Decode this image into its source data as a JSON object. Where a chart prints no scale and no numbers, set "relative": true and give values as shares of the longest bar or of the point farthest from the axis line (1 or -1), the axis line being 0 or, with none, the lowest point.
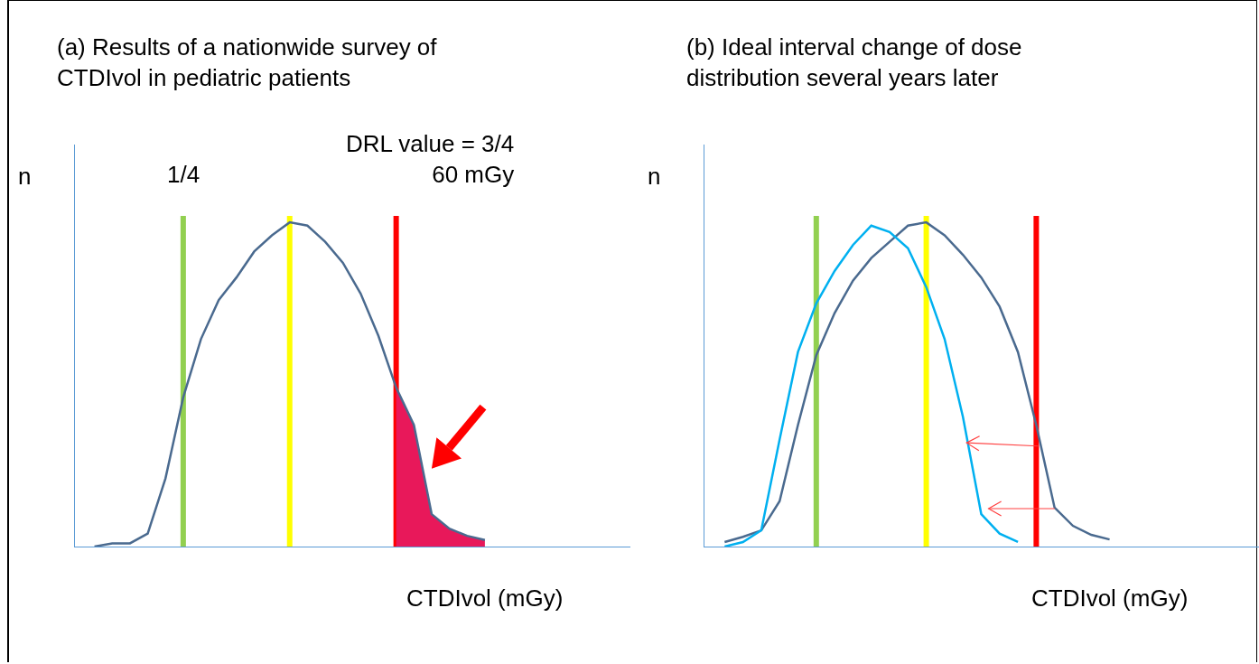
{
  "chart_data": [
    {
      "type": "line",
      "relative": true,
      "title": "(a) Results of a nationwide survey of\nCTDIvol in pediatric patients",
      "xlabel": "CTDIvol (mGy)",
      "ylabel": "n",
      "marker": "none",
      "annotations": [
        "1/4",
        "DRL value = 3/4\n60 mGy"
      ],
      "categories": [
        null,
        null,
        null,
        null,
        null,
        null,
        null,
        null,
        null,
        null,
        null,
        null,
        null,
        null,
        null,
        null,
        null,
        null,
        null,
        null,
        null,
        null,
        null
      ],
      "series": [
        {
          "type": "area",
          "color": "#e8185a",
          "values": [
            null,
            null,
            null,
            null,
            null,
            null,
            null,
            null,
            null,
            null,
            null,
            null,
            null,
            null,
            null,
            null,
            null,
            0.49,
            0.375,
            0.1,
            0.055,
            0.033,
            0.02
          ]
        },
        {
          "color": "#4a6a8f",
          "values": [
            0,
            0.01,
            0.01,
            0.04,
            0.21,
            0.46,
            0.64,
            0.76,
            0.83,
            0.91,
            0.96,
            1.0,
            0.99,
            0.94,
            0.875,
            0.78,
            0.65,
            0.49,
            0.375,
            0.1,
            0.055,
            0.033,
            0.02
          ]
        }
      ]
    },
    {
      "type": "line",
      "relative": true,
      "title": "(b) Ideal interval change of dose\ndistribution several years later",
      "xlabel": "CTDIvol (mGy)",
      "ylabel": "n",
      "marker": "none",
      "categories": [
        null,
        null,
        null,
        null,
        null,
        null,
        null,
        null,
        null,
        null,
        null,
        null,
        null,
        null,
        null,
        null,
        null,
        null,
        null,
        null,
        null,
        null
      ],
      "series": [
        {
          "color": "#4a6a8f",
          "values": [
            0.014,
            0.03,
            0.05,
            0.14,
            0.375,
            0.59,
            0.72,
            0.82,
            0.89,
            0.94,
            0.99,
            1.0,
            0.96,
            0.9,
            0.83,
            0.74,
            0.6,
            0.375,
            0.12,
            0.064,
            0.036,
            0.022
          ]
        },
        {
          "color": "#00b0f0",
          "values": [
            0,
            0.014,
            0.05,
            0.33,
            0.6,
            0.75,
            0.85,
            0.93,
            0.99,
            0.97,
            0.92,
            0.8,
            0.64,
            0.4,
            0.1,
            0.04,
            0.014,
            null,
            null,
            null,
            null,
            null
          ]
        }
      ]
    }
  ]
}
